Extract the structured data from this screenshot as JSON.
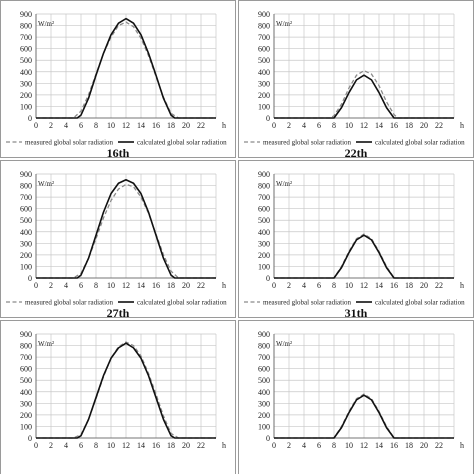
{
  "legend": {
    "measured": "measured global solar radiation",
    "calculated": "calculated global solar radiation"
  },
  "colors": {
    "measured": "#8a8a8a",
    "calculated": "#111111",
    "grid": "#c8c8c8",
    "panel_border": "#9a9a9a"
  },
  "chart_data": [
    {
      "type": "line",
      "caption": "16th",
      "ylabel": "W/m²",
      "xlabel": "h",
      "xlim": [
        0,
        24
      ],
      "ylim": [
        0,
        900
      ],
      "xticks": [
        0,
        2,
        4,
        6,
        8,
        10,
        12,
        14,
        16,
        18,
        20,
        22
      ],
      "yticks": [
        0,
        100,
        200,
        300,
        400,
        500,
        600,
        700,
        800,
        900
      ],
      "grid": true,
      "legend_position": "bottom",
      "series": [
        {
          "name": "measured global solar radiation",
          "style": "dashed",
          "x": [
            0,
            5,
            6,
            7,
            8,
            9,
            10,
            11,
            12,
            13,
            14,
            15,
            16,
            17,
            18,
            19,
            24
          ],
          "y": [
            0,
            0,
            60,
            200,
            380,
            560,
            700,
            800,
            830,
            790,
            690,
            540,
            360,
            180,
            40,
            0,
            0
          ]
        },
        {
          "name": "calculated global solar radiation",
          "style": "solid",
          "x": [
            0,
            5.5,
            6,
            7,
            8,
            9,
            10,
            11,
            12,
            13,
            14,
            15,
            16,
            17,
            18,
            18.5,
            24
          ],
          "y": [
            0,
            0,
            25,
            170,
            370,
            560,
            720,
            820,
            860,
            820,
            720,
            560,
            370,
            170,
            25,
            0,
            0
          ]
        }
      ]
    },
    {
      "type": "line",
      "caption": "22th",
      "ylabel": "W/m²",
      "xlabel": "h",
      "xlim": [
        0,
        24
      ],
      "ylim": [
        0,
        900
      ],
      "xticks": [
        0,
        2,
        4,
        6,
        8,
        10,
        12,
        14,
        16,
        18,
        20,
        22
      ],
      "yticks": [
        0,
        100,
        200,
        300,
        400,
        500,
        600,
        700,
        800,
        900
      ],
      "grid": true,
      "legend_position": "bottom",
      "series": [
        {
          "name": "measured global solar radiation",
          "style": "dashed",
          "x": [
            0,
            7.5,
            8,
            9,
            10,
            11,
            12,
            13,
            14,
            15,
            16,
            16.5,
            24
          ],
          "y": [
            0,
            0,
            20,
            120,
            260,
            370,
            410,
            380,
            280,
            140,
            30,
            0,
            0
          ]
        },
        {
          "name": "calculated global solar radiation",
          "style": "solid",
          "x": [
            0,
            8,
            9,
            10,
            11,
            12,
            13,
            14,
            15,
            16,
            24
          ],
          "y": [
            0,
            0,
            90,
            220,
            330,
            370,
            330,
            220,
            90,
            0,
            0
          ]
        }
      ]
    },
    {
      "type": "line",
      "caption": "27th",
      "ylabel": "W/m²",
      "xlabel": "h",
      "xlim": [
        0,
        24
      ],
      "ylim": [
        0,
        900
      ],
      "xticks": [
        0,
        2,
        4,
        6,
        8,
        10,
        12,
        14,
        16,
        18,
        20,
        22
      ],
      "yticks": [
        0,
        100,
        200,
        300,
        400,
        500,
        600,
        700,
        800,
        900
      ],
      "grid": true,
      "legend_position": "bottom",
      "series": [
        {
          "name": "measured global solar radiation",
          "style": "dashed",
          "x": [
            0,
            5,
            6,
            7,
            8,
            9,
            10,
            11,
            12,
            13,
            14,
            15,
            16,
            17,
            18,
            19,
            24
          ],
          "y": [
            0,
            0,
            40,
            170,
            340,
            520,
            670,
            770,
            810,
            790,
            700,
            560,
            380,
            200,
            60,
            0,
            0
          ]
        },
        {
          "name": "calculated global solar radiation",
          "style": "solid",
          "x": [
            0,
            5.5,
            6,
            7,
            8,
            9,
            10,
            11,
            12,
            13,
            14,
            15,
            16,
            17,
            18,
            18.5,
            24
          ],
          "y": [
            0,
            0,
            25,
            170,
            370,
            570,
            730,
            820,
            850,
            820,
            730,
            570,
            370,
            170,
            25,
            0,
            0
          ]
        }
      ]
    },
    {
      "type": "line",
      "caption": "31th",
      "ylabel": "W/m²",
      "xlabel": "h",
      "xlim": [
        0,
        24
      ],
      "ylim": [
        0,
        900
      ],
      "xticks": [
        0,
        2,
        4,
        6,
        8,
        10,
        12,
        14,
        16,
        18,
        20,
        22
      ],
      "yticks": [
        0,
        100,
        200,
        300,
        400,
        500,
        600,
        700,
        800,
        900
      ],
      "grid": true,
      "legend_position": "bottom",
      "series": [
        {
          "name": "measured global solar radiation",
          "style": "dashed",
          "x": [
            0,
            8,
            9,
            10,
            11,
            12,
            13,
            14,
            15,
            16,
            24
          ],
          "y": [
            0,
            0,
            100,
            230,
            340,
            380,
            340,
            230,
            100,
            0,
            0
          ]
        },
        {
          "name": "calculated global solar radiation",
          "style": "solid",
          "x": [
            0,
            8,
            9,
            10,
            11,
            12,
            13,
            14,
            15,
            16,
            24
          ],
          "y": [
            0,
            0,
            90,
            220,
            330,
            370,
            330,
            220,
            90,
            0,
            0
          ]
        }
      ]
    },
    {
      "type": "line",
      "caption": "",
      "ylabel": "W/m²",
      "xlabel": "h",
      "xlim": [
        0,
        24
      ],
      "ylim": [
        0,
        900
      ],
      "xticks": [
        0,
        2,
        4,
        6,
        8,
        10,
        12,
        14,
        16,
        18,
        20,
        22
      ],
      "yticks": [
        0,
        100,
        200,
        300,
        400,
        500,
        600,
        700,
        800,
        900
      ],
      "grid": true,
      "legend_position": "none",
      "series": [
        {
          "name": "measured global solar radiation",
          "style": "dashed",
          "x": [
            0,
            5,
            6,
            7,
            8,
            9,
            10,
            11,
            12,
            13,
            14,
            15,
            16,
            17,
            18,
            19,
            24
          ],
          "y": [
            0,
            0,
            30,
            160,
            340,
            530,
            690,
            790,
            830,
            800,
            710,
            560,
            380,
            190,
            40,
            0,
            0
          ]
        },
        {
          "name": "calculated global solar radiation",
          "style": "solid",
          "x": [
            0,
            5.5,
            6,
            7,
            8,
            9,
            10,
            11,
            12,
            13,
            14,
            15,
            16,
            17,
            18,
            18.5,
            24
          ],
          "y": [
            0,
            0,
            20,
            160,
            350,
            540,
            690,
            780,
            820,
            780,
            690,
            540,
            350,
            160,
            20,
            0,
            0
          ]
        }
      ]
    },
    {
      "type": "line",
      "caption": "",
      "ylabel": "W/m²",
      "xlabel": "h",
      "xlim": [
        0,
        24
      ],
      "ylim": [
        0,
        900
      ],
      "xticks": [
        0,
        2,
        4,
        6,
        8,
        10,
        12,
        14,
        16,
        18,
        20,
        22
      ],
      "yticks": [
        0,
        100,
        200,
        300,
        400,
        500,
        600,
        700,
        800,
        900
      ],
      "grid": true,
      "legend_position": "none",
      "series": [
        {
          "name": "measured global solar radiation",
          "style": "dashed",
          "x": [
            0,
            8,
            9,
            10,
            11,
            12,
            13,
            14,
            15,
            16,
            24
          ],
          "y": [
            0,
            0,
            100,
            230,
            340,
            380,
            340,
            230,
            100,
            0,
            0
          ]
        },
        {
          "name": "calculated global solar radiation",
          "style": "solid",
          "x": [
            0,
            8,
            9,
            10,
            11,
            12,
            13,
            14,
            15,
            16,
            24
          ],
          "y": [
            0,
            0,
            90,
            220,
            330,
            370,
            330,
            220,
            90,
            0,
            0
          ]
        }
      ]
    }
  ]
}
